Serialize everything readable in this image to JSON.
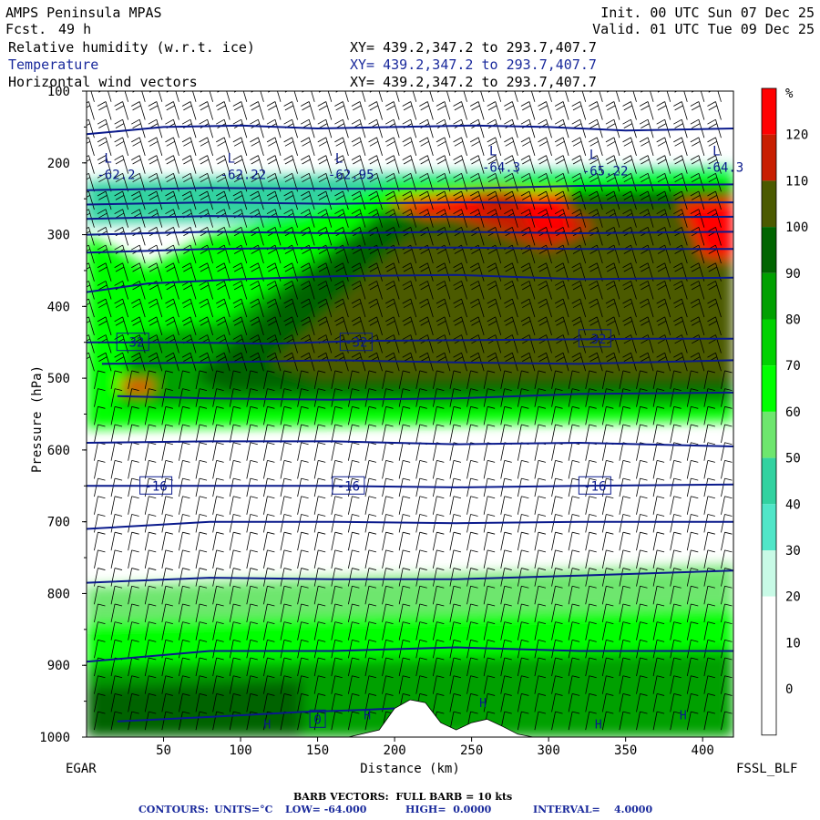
{
  "header": {
    "model": "AMPS Peninsula MPAS",
    "fcst_label": "Fcst.",
    "fcst_value": "49 h",
    "init": "Init. 00 UTC Sun 07 Dec 25",
    "valid": "Valid. 01 UTC Tue 09 Dec 25",
    "fields": [
      {
        "name": "Relative humidity (w.r.t. ice)",
        "xy": "XY= 439.2,347.2 to 293.7,407.7"
      },
      {
        "name": "Temperature",
        "xy": "XY= 439.2,347.2 to 293.7,407.7"
      },
      {
        "name": "Horizontal wind vectors",
        "xy": "XY= 439.2,347.2 to 293.7,407.7"
      }
    ]
  },
  "chart_data": {
    "type": "heatmap",
    "xlabel": "Distance (km)",
    "ylabel": "Pressure (hPa)",
    "x_ticks": [
      "50",
      "100",
      "150",
      "200",
      "250",
      "300",
      "350",
      "400"
    ],
    "y_ticks": [
      "100",
      "200",
      "300",
      "400",
      "500",
      "600",
      "700",
      "800",
      "900",
      "1000"
    ],
    "xlim": [
      0,
      420
    ],
    "ylim_hpa": [
      1000,
      100
    ],
    "left_endpoint": "EGAR",
    "right_endpoint": "FSSL_BLF",
    "colorbar": {
      "unit": "%",
      "labels": [
        "120",
        "110",
        "100",
        "90",
        "80",
        "70",
        "60",
        "50",
        "40",
        "30",
        "20",
        "10",
        "0"
      ],
      "colors": [
        "#ff0000",
        "#c81e00",
        "#4b5a00",
        "#006400",
        "#00a000",
        "#00d200",
        "#00ff00",
        "#6ee66e",
        "#32d2a0",
        "#50e6c8",
        "#c8fae6",
        "#ffffff",
        "#ffffff",
        "#ffffff"
      ]
    },
    "temperature_contour_labels": [
      {
        "text": "-32",
        "x": 30,
        "p": 450
      },
      {
        "text": "-32",
        "x": 175,
        "p": 450
      },
      {
        "text": "-32",
        "x": 330,
        "p": 445
      },
      {
        "text": "-16",
        "x": 45,
        "p": 650
      },
      {
        "text": "-16",
        "x": 170,
        "p": 650
      },
      {
        "text": "-16",
        "x": 330,
        "p": 650
      },
      {
        "text": "0",
        "x": 150,
        "p": 975
      }
    ],
    "low_markers": [
      {
        "text": "-62.2",
        "x": 15,
        "p": 220
      },
      {
        "text": "-62.22",
        "x": 95,
        "p": 220
      },
      {
        "text": "-62.95",
        "x": 165,
        "p": 220
      },
      {
        "text": "-64.3",
        "x": 265,
        "p": 210
      },
      {
        "text": "-65.22",
        "x": 330,
        "p": 215
      },
      {
        "text": "-64.3",
        "x": 410,
        "p": 210
      }
    ],
    "high_markers": [
      {
        "x": 115,
        "p": 988
      },
      {
        "x": 180,
        "p": 975
      },
      {
        "x": 255,
        "p": 958
      },
      {
        "x": 330,
        "p": 988
      },
      {
        "x": 385,
        "p": 975
      }
    ],
    "isotherms": [
      {
        "temp": "-60",
        "points": [
          [
            0,
            160
          ],
          [
            50,
            150
          ],
          [
            100,
            148
          ],
          [
            150,
            152
          ],
          [
            200,
            150
          ],
          [
            250,
            148
          ],
          [
            300,
            150
          ],
          [
            350,
            155
          ],
          [
            420,
            152
          ]
        ]
      },
      {
        "temp": "-56",
        "points": [
          [
            0,
            238
          ],
          [
            80,
            235
          ],
          [
            160,
            236
          ],
          [
            240,
            236
          ],
          [
            320,
            232
          ],
          [
            420,
            230
          ]
        ]
      },
      {
        "temp": "-52",
        "points": [
          [
            0,
            258
          ],
          [
            80,
            255
          ],
          [
            160,
            257
          ],
          [
            240,
            255
          ],
          [
            320,
            256
          ],
          [
            420,
            255
          ]
        ]
      },
      {
        "temp": "-48",
        "points": [
          [
            0,
            278
          ],
          [
            80,
            274
          ],
          [
            160,
            276
          ],
          [
            240,
            275
          ],
          [
            320,
            276
          ],
          [
            420,
            275
          ]
        ]
      },
      {
        "temp": "-44",
        "points": [
          [
            0,
            300
          ],
          [
            80,
            296
          ],
          [
            160,
            298
          ],
          [
            240,
            296
          ],
          [
            320,
            298
          ],
          [
            420,
            296
          ]
        ]
      },
      {
        "temp": "-40",
        "points": [
          [
            0,
            325
          ],
          [
            80,
            320
          ],
          [
            160,
            318
          ],
          [
            240,
            318
          ],
          [
            320,
            320
          ],
          [
            420,
            320
          ]
        ]
      },
      {
        "temp": "-36",
        "points": [
          [
            0,
            380
          ],
          [
            40,
            368
          ],
          [
            100,
            362
          ],
          [
            160,
            358
          ],
          [
            240,
            356
          ],
          [
            320,
            362
          ],
          [
            420,
            360
          ]
        ]
      },
      {
        "temp": "-32",
        "points": [
          [
            0,
            450
          ],
          [
            60,
            450
          ],
          [
            120,
            452
          ],
          [
            180,
            448
          ],
          [
            240,
            447
          ],
          [
            300,
            446
          ],
          [
            360,
            445
          ],
          [
            420,
            445
          ]
        ]
      },
      {
        "temp": "-28",
        "points": [
          [
            10,
            480
          ],
          [
            80,
            478
          ],
          [
            160,
            475
          ],
          [
            240,
            478
          ],
          [
            320,
            480
          ],
          [
            420,
            475
          ]
        ]
      },
      {
        "temp": "-24",
        "points": [
          [
            20,
            525
          ],
          [
            80,
            528
          ],
          [
            160,
            530
          ],
          [
            240,
            528
          ],
          [
            320,
            522
          ],
          [
            420,
            520
          ]
        ]
      },
      {
        "temp": "-20",
        "points": [
          [
            0,
            590
          ],
          [
            80,
            588
          ],
          [
            160,
            588
          ],
          [
            240,
            592
          ],
          [
            320,
            590
          ],
          [
            420,
            595
          ]
        ]
      },
      {
        "temp": "-16",
        "points": [
          [
            0,
            650
          ],
          [
            80,
            650
          ],
          [
            160,
            650
          ],
          [
            240,
            652
          ],
          [
            320,
            650
          ],
          [
            420,
            648
          ]
        ]
      },
      {
        "temp": "-12",
        "points": [
          [
            0,
            710
          ],
          [
            80,
            700
          ],
          [
            160,
            700
          ],
          [
            240,
            702
          ],
          [
            320,
            700
          ],
          [
            420,
            700
          ]
        ]
      },
      {
        "temp": "-8",
        "points": [
          [
            0,
            785
          ],
          [
            80,
            778
          ],
          [
            160,
            780
          ],
          [
            240,
            780
          ],
          [
            320,
            775
          ],
          [
            420,
            768
          ]
        ]
      },
      {
        "temp": "-4",
        "points": [
          [
            0,
            895
          ],
          [
            80,
            880
          ],
          [
            160,
            880
          ],
          [
            240,
            875
          ],
          [
            320,
            880
          ],
          [
            420,
            880
          ]
        ]
      },
      {
        "temp": "0",
        "points": [
          [
            20,
            978
          ],
          [
            80,
            972
          ],
          [
            140,
            965
          ],
          [
            180,
            962
          ],
          [
            200,
            960
          ]
        ]
      }
    ],
    "terrain_surface_hpa": [
      [
        0,
        1000
      ],
      [
        170,
        1000
      ],
      [
        190,
        990
      ],
      [
        200,
        960
      ],
      [
        210,
        948
      ],
      [
        220,
        952
      ],
      [
        230,
        980
      ],
      [
        240,
        990
      ],
      [
        250,
        980
      ],
      [
        260,
        975
      ],
      [
        270,
        985
      ],
      [
        280,
        996
      ],
      [
        290,
        1000
      ],
      [
        420,
        1000
      ]
    ],
    "footer": {
      "barb_note": "BARB VECTORS:  FULL BARB = 10 kts",
      "contours_label": "CONTOURS:",
      "units": "UNITS=°C",
      "low": "LOW= -64.000",
      "high": "HIGH=  0.0000",
      "interval": "INTERVAL=    4.0000"
    }
  }
}
